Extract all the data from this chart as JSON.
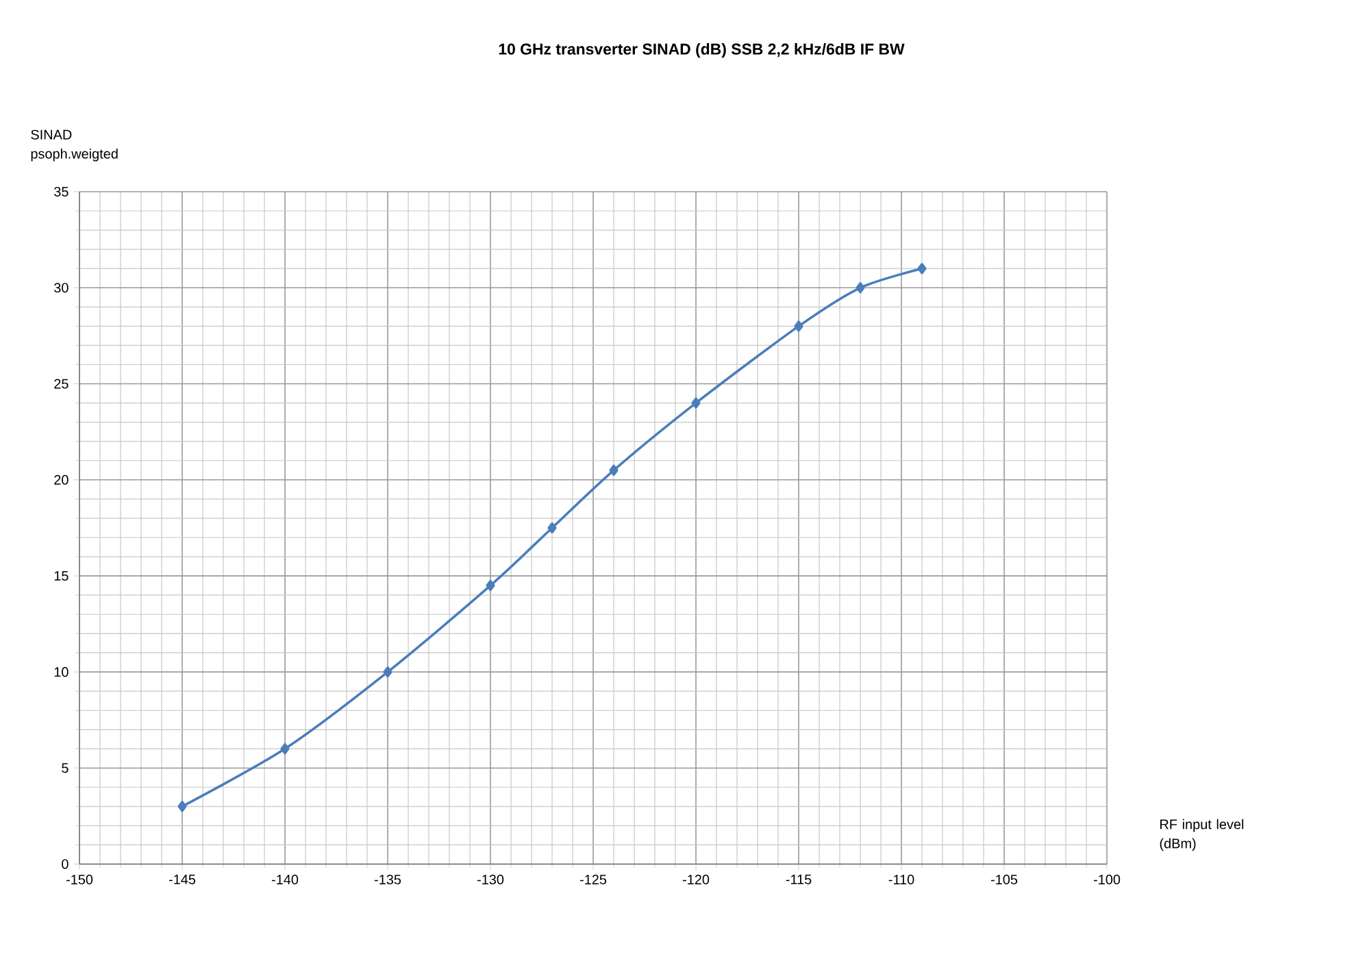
{
  "chart_data": {
    "type": "line",
    "title": "10 GHz transverter SINAD (dB) SSB 2,2 kHz/6dB IF BW",
    "xlabel": "RF input level (dBm)",
    "ylabel": "SINAD psoph.weigted",
    "x": [
      -145,
      -140,
      -135,
      -130,
      -127,
      -124,
      -120,
      -115,
      -112,
      -109
    ],
    "series": [
      {
        "color": "#4a7ebb",
        "values": [
          3,
          6,
          10,
          14.5,
          17.5,
          20.5,
          24,
          28,
          30,
          31
        ]
      }
    ],
    "xlim": [
      -150,
      -100
    ],
    "xticks": [
      -150,
      -145,
      -140,
      -135,
      -130,
      -125,
      -120,
      -115,
      -110,
      -105,
      -100
    ],
    "ylim": [
      0,
      35
    ],
    "yticks": [
      0,
      5,
      10,
      15,
      20,
      25,
      30,
      35
    ],
    "grid": true,
    "marker": "diamond",
    "line_style": "solid"
  }
}
